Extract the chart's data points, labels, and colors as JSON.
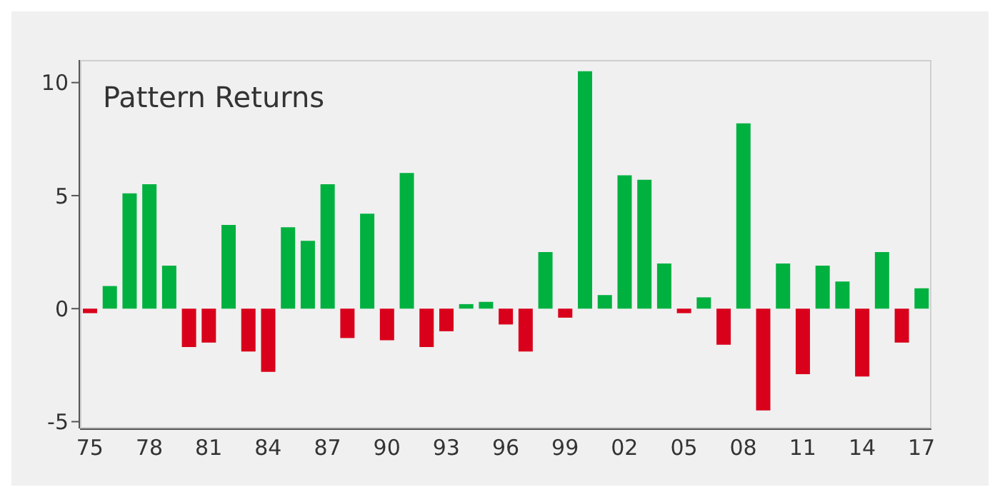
{
  "chart_data": {
    "type": "bar",
    "title": "Pattern Returns",
    "categories": [
      "75",
      null,
      null,
      "78",
      null,
      null,
      "81",
      null,
      null,
      "84",
      null,
      null,
      "87",
      null,
      null,
      "90",
      null,
      null,
      "93",
      null,
      null,
      "96",
      null,
      null,
      "99",
      null,
      null,
      "02",
      null,
      null,
      "05",
      null,
      null,
      "08",
      null,
      null,
      "11",
      null,
      null,
      "14",
      null,
      null,
      "17"
    ],
    "values": [
      -0.2,
      1.0,
      5.1,
      5.5,
      1.9,
      -1.7,
      -1.5,
      3.7,
      -1.9,
      -2.8,
      3.6,
      3.0,
      5.5,
      -1.3,
      4.2,
      -1.4,
      6.0,
      -1.7,
      -1.0,
      0.2,
      0.3,
      -0.7,
      -1.9,
      2.5,
      -0.4,
      10.5,
      0.6,
      5.9,
      5.7,
      2.0,
      -0.2,
      0.5,
      -1.6,
      8.2,
      -4.5,
      2.0,
      -2.9,
      1.9,
      1.2,
      -3.0,
      2.5,
      -1.5,
      0.9
    ],
    "colors": [
      "#d9001b",
      "#00b140",
      "#00b140",
      "#00b140",
      "#00b140",
      "#d9001b",
      "#d9001b",
      "#00b140",
      "#d9001b",
      "#d9001b",
      "#00b140",
      "#00b140",
      "#00b140",
      "#d9001b",
      "#00b140",
      "#d9001b",
      "#00b140",
      "#d9001b",
      "#d9001b",
      "#00b140",
      "#00b140",
      "#d9001b",
      "#d9001b",
      "#00b140",
      "#d9001b",
      "#00b140",
      "#00b140",
      "#00b140",
      "#00b140",
      "#00b140",
      "#d9001b",
      "#00b140",
      "#d9001b",
      "#00b140",
      "#d9001b",
      "#00b140",
      "#d9001b",
      "#00b140",
      "#00b140",
      "#d9001b",
      "#00b140",
      "#d9001b",
      "#00b140"
    ],
    "ylim": [
      -5.3,
      11
    ],
    "yticks": [
      -5,
      0,
      5,
      10
    ]
  }
}
